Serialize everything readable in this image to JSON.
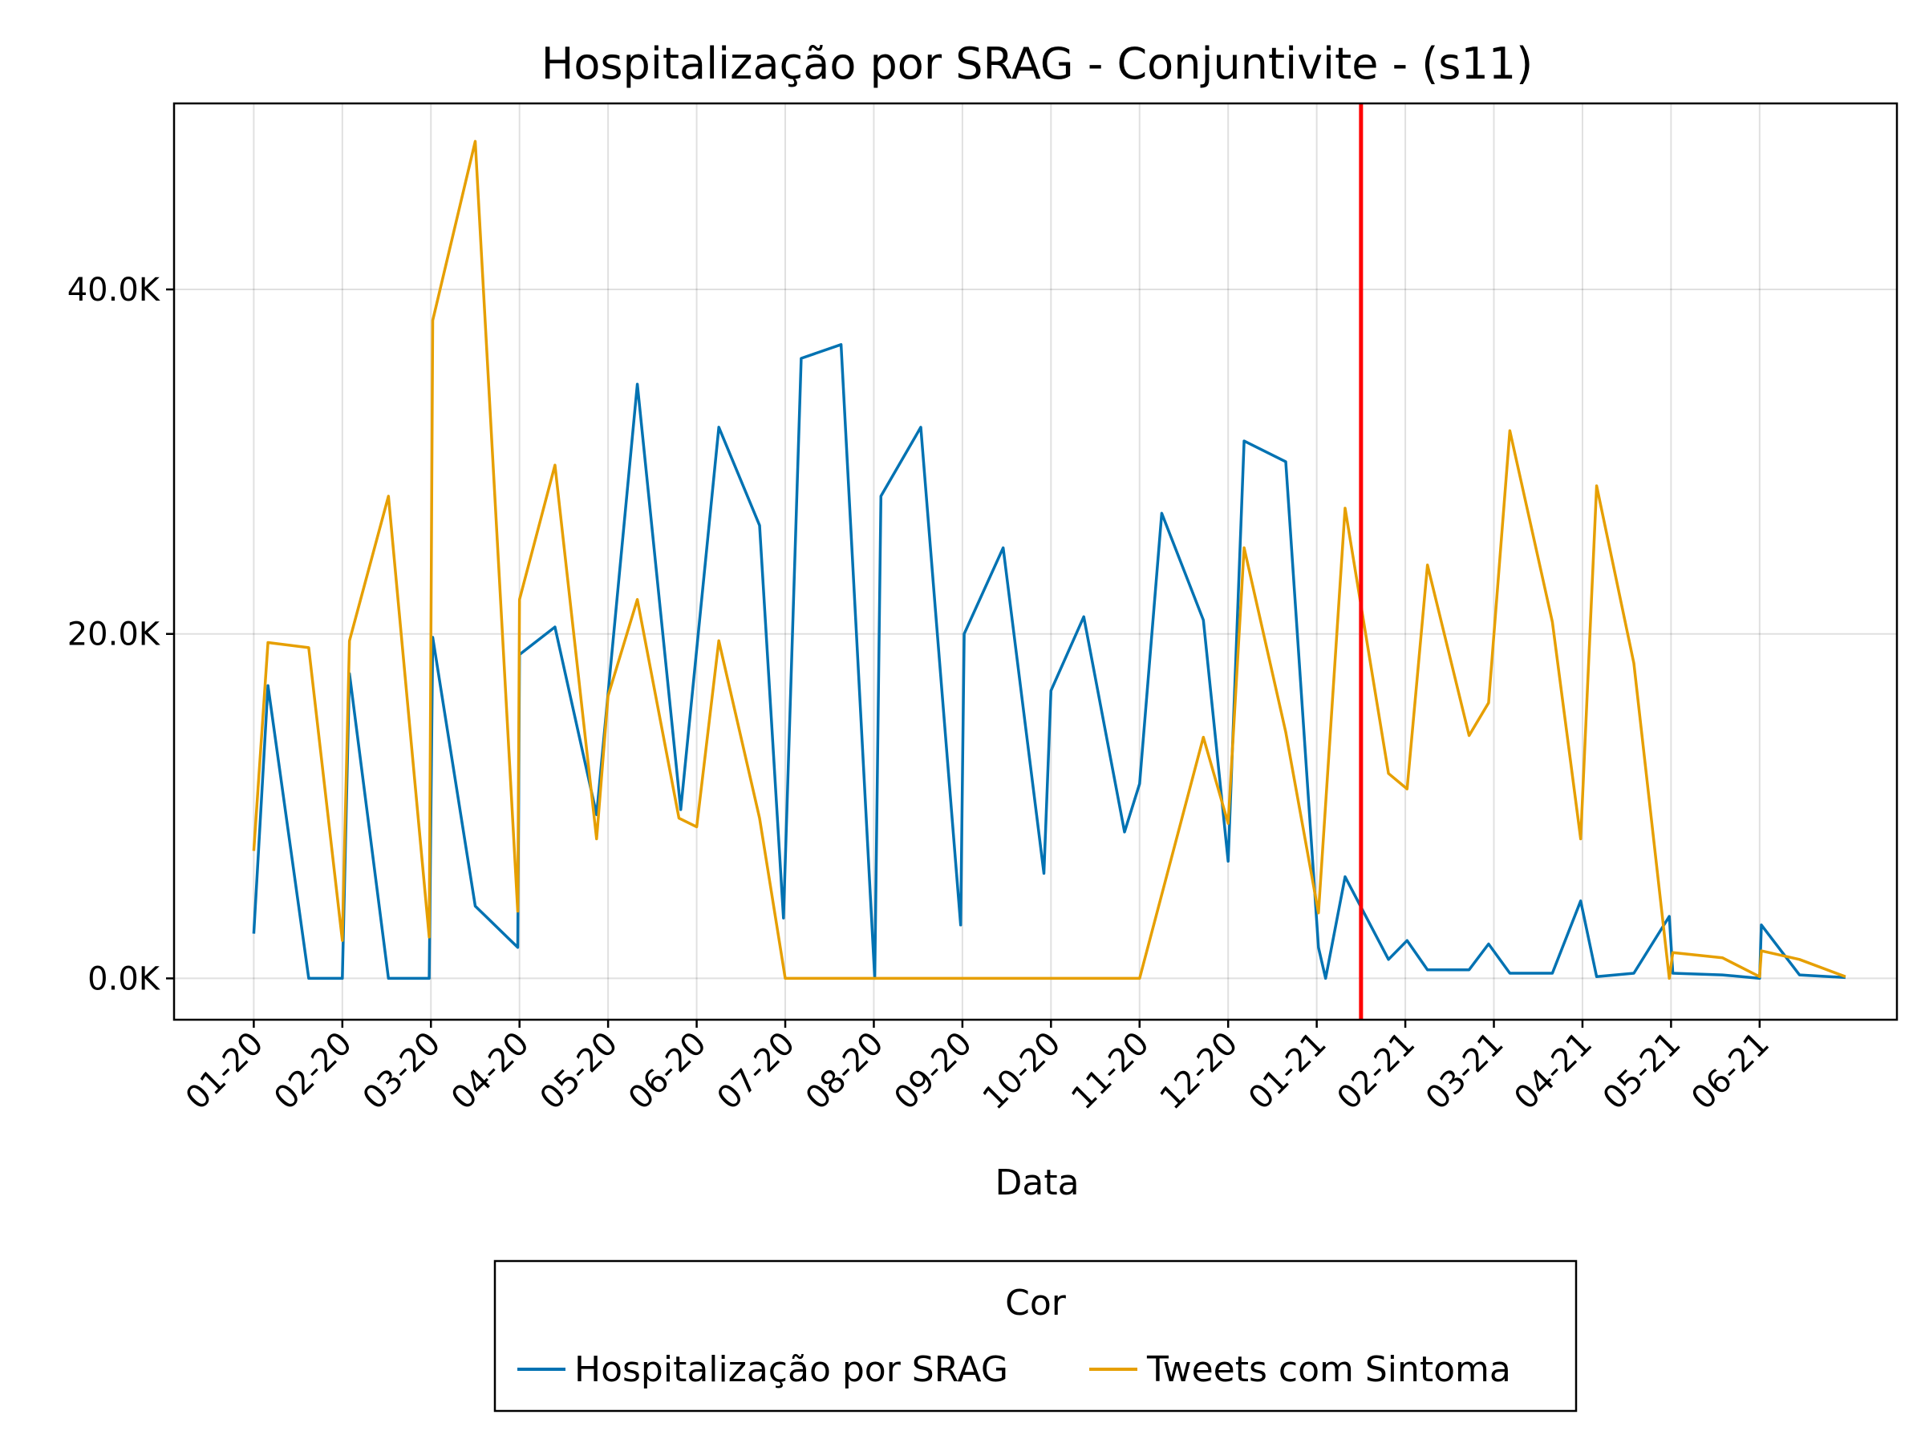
{
  "chart_data": {
    "type": "line",
    "title": "Hospitalização por SRAG - Conjuntivite - (s11)",
    "xlabel": "Data",
    "ylabel": "",
    "x_tick_labels": [
      "01-20",
      "02-20",
      "03-20",
      "04-20",
      "05-20",
      "06-20",
      "07-20",
      "08-20",
      "09-20",
      "10-20",
      "11-20",
      "12-20",
      "01-21",
      "02-21",
      "03-21",
      "04-21",
      "05-21",
      "06-21"
    ],
    "y_ticks": [
      0,
      20000,
      40000
    ],
    "y_tick_labels": [
      "0.0K",
      "20.0K",
      "40.0K"
    ],
    "ylim": [
      -2400,
      50800
    ],
    "xlim": [
      -0.9,
      18.55
    ],
    "grid": true,
    "vertical_marker": {
      "x": 12.5,
      "color": "#ff0000"
    },
    "legend": {
      "title": "Cor",
      "position": "bottom-center",
      "entries": [
        {
          "label": "Hospitalização por SRAG",
          "color": "#0072b2"
        },
        {
          "label": "Tweets com Sintoma",
          "color": "#e69f00"
        }
      ]
    },
    "series": [
      {
        "name": "Hospitalização por SRAG",
        "color": "#0072b2",
        "points": [
          [
            0.0,
            2600
          ],
          [
            0.16,
            17000
          ],
          [
            0.62,
            0
          ],
          [
            1.0,
            0
          ],
          [
            1.08,
            17700
          ],
          [
            1.52,
            0
          ],
          [
            1.98,
            0
          ],
          [
            2.02,
            19800
          ],
          [
            2.5,
            4200
          ],
          [
            2.98,
            1800
          ],
          [
            3.0,
            18800
          ],
          [
            3.4,
            20400
          ],
          [
            3.87,
            9500
          ],
          [
            4.33,
            34500
          ],
          [
            4.82,
            9800
          ],
          [
            5.25,
            32000
          ],
          [
            5.71,
            26300
          ],
          [
            5.98,
            3500
          ],
          [
            6.18,
            36000
          ],
          [
            6.63,
            36800
          ],
          [
            7.01,
            0
          ],
          [
            7.08,
            28000
          ],
          [
            7.53,
            32000
          ],
          [
            7.98,
            3100
          ],
          [
            8.02,
            20000
          ],
          [
            8.46,
            25000
          ],
          [
            8.92,
            6100
          ],
          [
            9.0,
            16700
          ],
          [
            9.37,
            21000
          ],
          [
            9.83,
            8500
          ],
          [
            10.0,
            11300
          ],
          [
            10.25,
            27000
          ],
          [
            10.72,
            20800
          ],
          [
            11.0,
            6800
          ],
          [
            11.18,
            31200
          ],
          [
            11.65,
            30000
          ],
          [
            12.02,
            1800
          ],
          [
            12.1,
            0
          ],
          [
            12.32,
            5900
          ],
          [
            12.81,
            1100
          ],
          [
            13.02,
            2200
          ],
          [
            13.25,
            500
          ],
          [
            13.72,
            500
          ],
          [
            13.94,
            2000
          ],
          [
            14.18,
            300
          ],
          [
            14.66,
            300
          ],
          [
            14.98,
            4500
          ],
          [
            15.16,
            100
          ],
          [
            15.58,
            300
          ],
          [
            15.98,
            3600
          ],
          [
            16.02,
            300
          ],
          [
            16.58,
            200
          ],
          [
            17.0,
            0
          ],
          [
            17.02,
            3100
          ],
          [
            17.45,
            200
          ],
          [
            17.97,
            50
          ]
        ]
      },
      {
        "name": "Tweets com Sintoma",
        "color": "#e69f00",
        "points": [
          [
            0.0,
            7400
          ],
          [
            0.16,
            19500
          ],
          [
            0.62,
            19200
          ],
          [
            1.0,
            2200
          ],
          [
            1.08,
            19600
          ],
          [
            1.52,
            28000
          ],
          [
            1.98,
            2400
          ],
          [
            2.02,
            38200
          ],
          [
            2.5,
            48600
          ],
          [
            2.98,
            3900
          ],
          [
            3.0,
            22000
          ],
          [
            3.4,
            29800
          ],
          [
            3.87,
            8100
          ],
          [
            4.0,
            16400
          ],
          [
            4.33,
            22000
          ],
          [
            4.8,
            9300
          ],
          [
            5.0,
            8800
          ],
          [
            5.25,
            19600
          ],
          [
            5.71,
            9300
          ],
          [
            6.0,
            0
          ],
          [
            7.0,
            0
          ],
          [
            8.0,
            0
          ],
          [
            9.0,
            0
          ],
          [
            10.0,
            0
          ],
          [
            10.72,
            14000
          ],
          [
            11.0,
            9000
          ],
          [
            11.18,
            25000
          ],
          [
            11.65,
            14300
          ],
          [
            12.02,
            3800
          ],
          [
            12.32,
            27300
          ],
          [
            12.81,
            11900
          ],
          [
            13.02,
            11000
          ],
          [
            13.25,
            24000
          ],
          [
            13.72,
            14100
          ],
          [
            13.94,
            16000
          ],
          [
            14.18,
            31800
          ],
          [
            14.66,
            20700
          ],
          [
            14.98,
            8100
          ],
          [
            15.16,
            28600
          ],
          [
            15.58,
            18300
          ],
          [
            15.98,
            0
          ],
          [
            16.02,
            1500
          ],
          [
            16.58,
            1200
          ],
          [
            17.0,
            100
          ],
          [
            17.02,
            1600
          ],
          [
            17.45,
            1100
          ],
          [
            17.97,
            100
          ]
        ]
      }
    ]
  }
}
